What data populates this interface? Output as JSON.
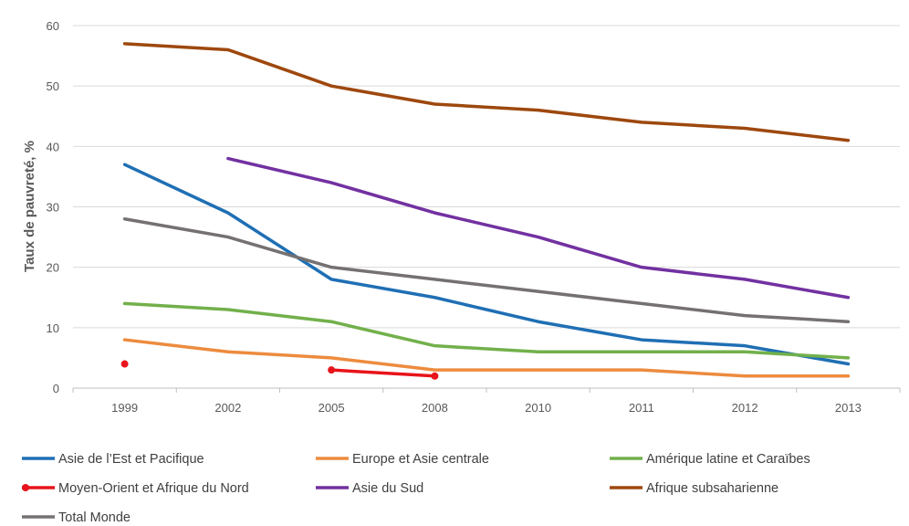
{
  "chart_data": {
    "type": "line",
    "title": "",
    "xlabel": "",
    "ylabel": "Taux de pauvreté, %",
    "categories": [
      "1999",
      "2002",
      "2005",
      "2008",
      "2010",
      "2011",
      "2012",
      "2013"
    ],
    "ylim": [
      0,
      60
    ],
    "yticks": [
      0,
      10,
      20,
      30,
      40,
      50,
      60
    ],
    "grid": true,
    "legend": "bottom",
    "series": [
      {
        "name": "Asie de l’Est et Pacifique",
        "color": "#1F6FB4",
        "values": [
          37,
          29,
          18,
          15,
          11,
          8,
          7,
          4
        ]
      },
      {
        "name": "Europe et Asie centrale",
        "color": "#ED8B3E",
        "values": [
          8,
          6,
          5,
          3,
          3,
          3,
          2,
          2
        ]
      },
      {
        "name": "Amérique latine et Caraïbes",
        "color": "#72B04B",
        "values": [
          14,
          13,
          11,
          7,
          6,
          6,
          6,
          5
        ]
      },
      {
        "name": "Moyen-Orient et Afrique du Nord",
        "color": "#E8141B",
        "marker": true,
        "values": [
          4,
          null,
          3,
          2,
          null,
          null,
          null,
          null
        ]
      },
      {
        "name": "Asie du Sud",
        "color": "#7231A1",
        "values": [
          null,
          38,
          34,
          29,
          25,
          20,
          18,
          15
        ]
      },
      {
        "name": "Afrique subsaharienne",
        "color": "#9E480E",
        "values": [
          57,
          56,
          50,
          47,
          46,
          44,
          43,
          41
        ]
      },
      {
        "name": "Total Monde",
        "color": "#757171",
        "values": [
          28,
          25,
          20,
          18,
          16,
          14,
          12,
          11
        ]
      }
    ]
  }
}
